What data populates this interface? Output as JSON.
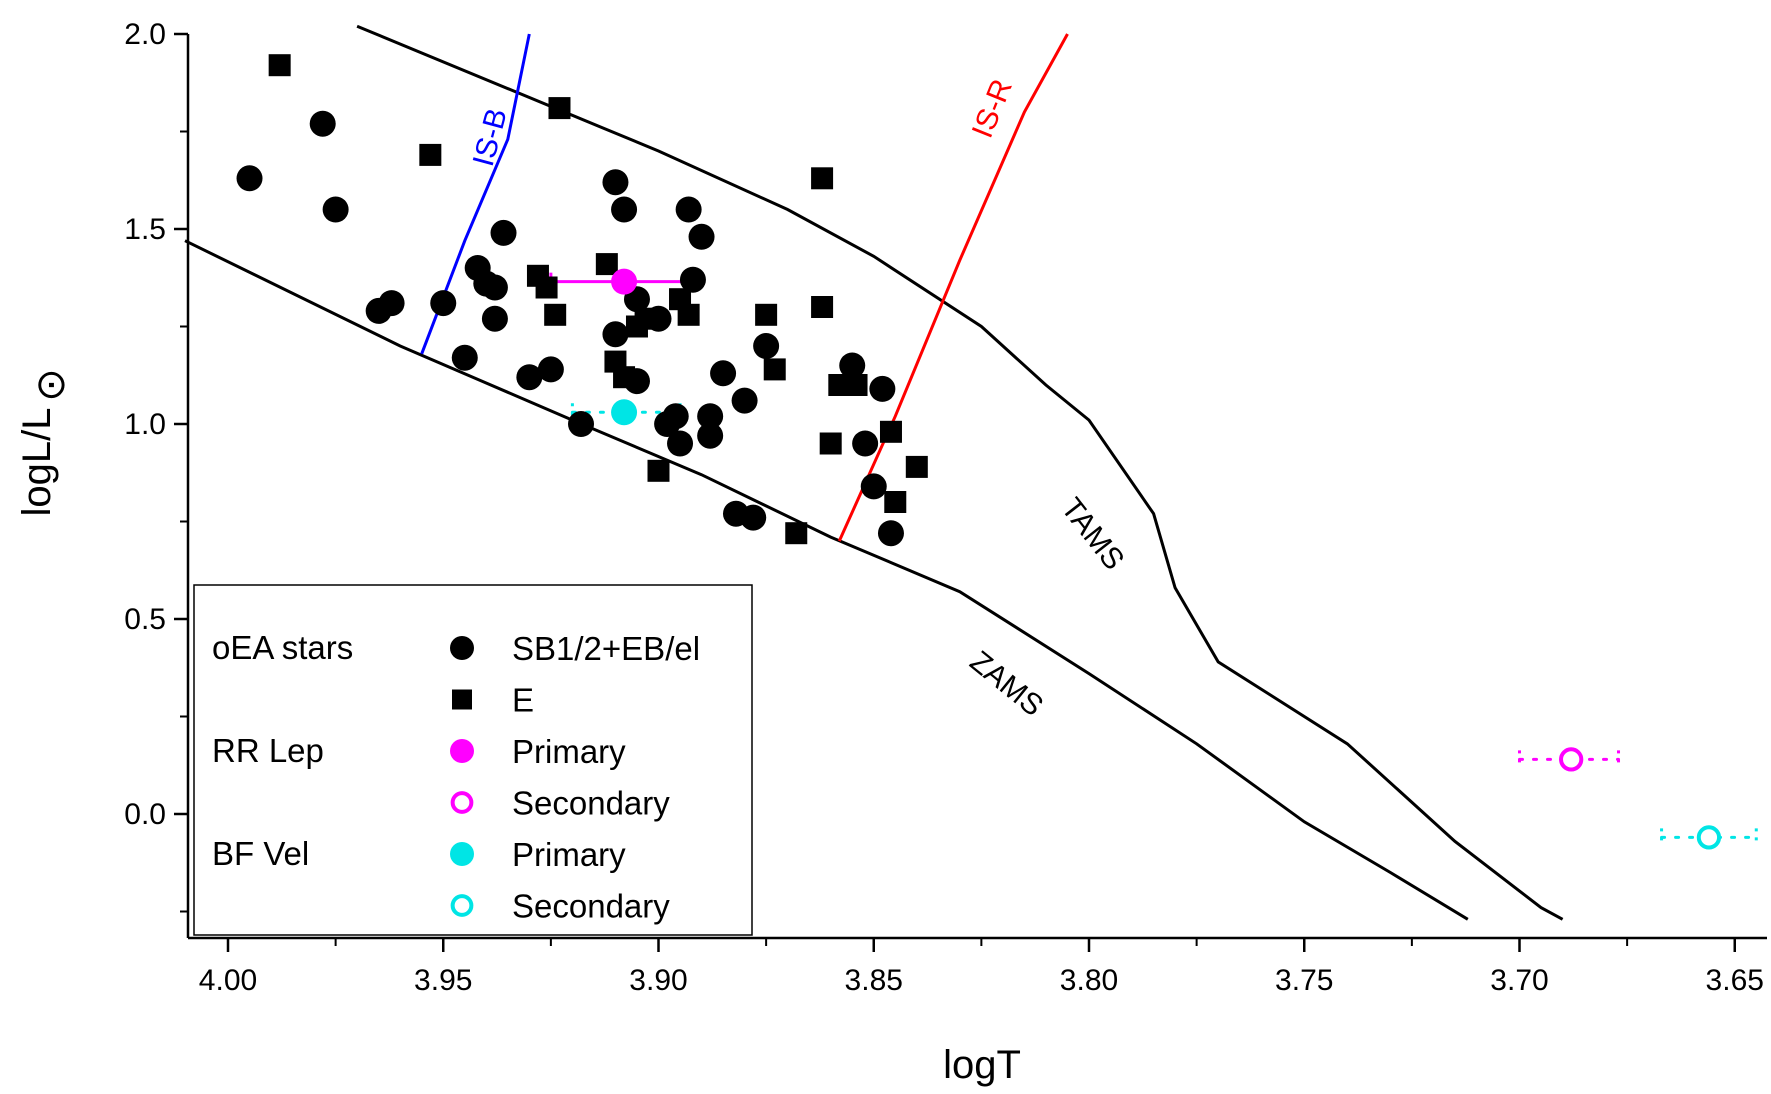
{
  "chart_data": {
    "type": "scatter",
    "title": "",
    "xlabel": "logT",
    "ylabel": "logL/L",
    "ylabel_symbol": "⊙",
    "xlim": [
      4.01,
      3.645
    ],
    "ylim": [
      -0.27,
      2.0
    ],
    "x_ticks": [
      "4.00",
      "3.95",
      "3.90",
      "3.85",
      "3.80",
      "3.75",
      "3.70",
      "3.65"
    ],
    "y_ticks": [
      "2.0",
      "1.5",
      "1.0",
      "0.5",
      "0.0"
    ],
    "lines": [
      {
        "name": "ZAMS",
        "label": "ZAMS",
        "color": "#000000",
        "points": [
          [
            4.01,
            1.47
          ],
          [
            3.96,
            1.2
          ],
          [
            3.92,
            1.01
          ],
          [
            3.89,
            0.87
          ],
          [
            3.86,
            0.71
          ],
          [
            3.83,
            0.57
          ],
          [
            3.8,
            0.36
          ],
          [
            3.775,
            0.18
          ],
          [
            3.75,
            -0.02
          ],
          [
            3.73,
            -0.15
          ],
          [
            3.712,
            -0.27
          ]
        ]
      },
      {
        "name": "TAMS",
        "label": "TAMS",
        "color": "#000000",
        "points": [
          [
            3.97,
            2.02
          ],
          [
            3.9,
            1.7
          ],
          [
            3.87,
            1.55
          ],
          [
            3.85,
            1.43
          ],
          [
            3.825,
            1.25
          ],
          [
            3.81,
            1.1
          ],
          [
            3.8,
            1.01
          ],
          [
            3.785,
            0.77
          ],
          [
            3.78,
            0.58
          ],
          [
            3.77,
            0.39
          ],
          [
            3.74,
            0.18
          ],
          [
            3.715,
            -0.07
          ],
          [
            3.695,
            -0.24
          ],
          [
            3.69,
            -0.27
          ]
        ]
      },
      {
        "name": "IS-B",
        "label": "IS-B",
        "color": "#0000ff",
        "points": [
          [
            3.955,
            1.18
          ],
          [
            3.945,
            1.47
          ],
          [
            3.935,
            1.73
          ],
          [
            3.93,
            2.0
          ]
        ]
      },
      {
        "name": "IS-R",
        "label": "IS-R",
        "color": "#ff0000",
        "points": [
          [
            3.858,
            0.7
          ],
          [
            3.845,
            1.02
          ],
          [
            3.83,
            1.42
          ],
          [
            3.815,
            1.8
          ],
          [
            3.805,
            2.0
          ]
        ]
      }
    ],
    "series": [
      {
        "name": "SB1/2+EB/el",
        "group": "oEA stars",
        "marker": "circle",
        "color": "#000000",
        "points": [
          [
            3.978,
            1.77
          ],
          [
            3.995,
            1.63
          ],
          [
            3.975,
            1.55
          ],
          [
            3.965,
            1.29
          ],
          [
            3.962,
            1.31
          ],
          [
            3.95,
            1.31
          ],
          [
            3.945,
            1.17
          ],
          [
            3.942,
            1.4
          ],
          [
            3.94,
            1.36
          ],
          [
            3.938,
            1.27
          ],
          [
            3.938,
            1.35
          ],
          [
            3.936,
            1.49
          ],
          [
            3.93,
            1.12
          ],
          [
            3.925,
            1.14
          ],
          [
            3.918,
            1.0
          ],
          [
            3.91,
            1.62
          ],
          [
            3.908,
            1.55
          ],
          [
            3.905,
            1.32
          ],
          [
            3.91,
            1.23
          ],
          [
            3.905,
            1.11
          ],
          [
            3.9,
            1.27
          ],
          [
            3.898,
            1.0
          ],
          [
            3.896,
            1.02
          ],
          [
            3.895,
            0.95
          ],
          [
            3.893,
            1.55
          ],
          [
            3.89,
            1.48
          ],
          [
            3.892,
            1.37
          ],
          [
            3.888,
            1.02
          ],
          [
            3.888,
            0.97
          ],
          [
            3.885,
            1.13
          ],
          [
            3.882,
            0.77
          ],
          [
            3.88,
            1.06
          ],
          [
            3.878,
            0.76
          ],
          [
            3.875,
            1.2
          ],
          [
            3.855,
            1.15
          ],
          [
            3.852,
            0.95
          ],
          [
            3.85,
            0.84
          ],
          [
            3.848,
            1.09
          ],
          [
            3.846,
            0.72
          ]
        ]
      },
      {
        "name": "E",
        "group": "oEA stars",
        "marker": "square",
        "color": "#000000",
        "points": [
          [
            3.988,
            1.92
          ],
          [
            3.953,
            1.69
          ],
          [
            3.923,
            1.81
          ],
          [
            3.928,
            1.38
          ],
          [
            3.926,
            1.35
          ],
          [
            3.924,
            1.28
          ],
          [
            3.912,
            1.41
          ],
          [
            3.91,
            1.16
          ],
          [
            3.908,
            1.12
          ],
          [
            3.905,
            1.25
          ],
          [
            3.903,
            1.27
          ],
          [
            3.9,
            0.88
          ],
          [
            3.895,
            1.32
          ],
          [
            3.893,
            1.28
          ],
          [
            3.875,
            1.28
          ],
          [
            3.873,
            1.14
          ],
          [
            3.868,
            0.72
          ],
          [
            3.862,
            1.63
          ],
          [
            3.862,
            1.3
          ],
          [
            3.86,
            0.95
          ],
          [
            3.858,
            1.1
          ],
          [
            3.854,
            1.1
          ],
          [
            3.846,
            0.98
          ],
          [
            3.845,
            0.8
          ],
          [
            3.84,
            0.89
          ]
        ]
      },
      {
        "name": "Primary",
        "group": "RR Lep",
        "marker": "circle",
        "color": "#ff00ff",
        "points": [
          [
            3.908,
            1.365
          ]
        ],
        "xerr": [
          [
            3.925,
            3.892
          ]
        ],
        "err_style": "solid"
      },
      {
        "name": "Secondary",
        "group": "RR Lep",
        "marker": "open-circle",
        "color": "#ff00ff",
        "points": [
          [
            3.688,
            0.14
          ]
        ],
        "xerr": [
          [
            3.7,
            3.677
          ]
        ],
        "err_style": "dotted"
      },
      {
        "name": "Primary",
        "group": "BF Vel",
        "marker": "circle",
        "color": "#00e5e5",
        "points": [
          [
            3.908,
            1.03
          ]
        ],
        "xerr": [
          [
            3.92,
            3.895
          ]
        ],
        "err_style": "dotted"
      },
      {
        "name": "Secondary",
        "group": "BF Vel",
        "marker": "open-circle",
        "color": "#00e5e5",
        "points": [
          [
            3.656,
            -0.06
          ]
        ],
        "xerr": [
          [
            3.667,
            3.645
          ]
        ],
        "err_style": "dotted"
      }
    ],
    "legend": {
      "placement": "bottom-left",
      "rows": [
        {
          "group": "oEA stars",
          "marker": "circle",
          "color": "#000000",
          "label": "SB1/2+EB/el"
        },
        {
          "group": "",
          "marker": "square",
          "color": "#000000",
          "label": "E"
        },
        {
          "group": "RR Lep",
          "marker": "circle",
          "color": "#ff00ff",
          "label": "Primary"
        },
        {
          "group": "",
          "marker": "open-circle",
          "color": "#ff00ff",
          "label": "Secondary"
        },
        {
          "group": "BF Vel",
          "marker": "circle",
          "color": "#00e5e5",
          "label": "Primary"
        },
        {
          "group": "",
          "marker": "open-circle",
          "color": "#00e5e5",
          "label": "Secondary"
        }
      ]
    }
  }
}
